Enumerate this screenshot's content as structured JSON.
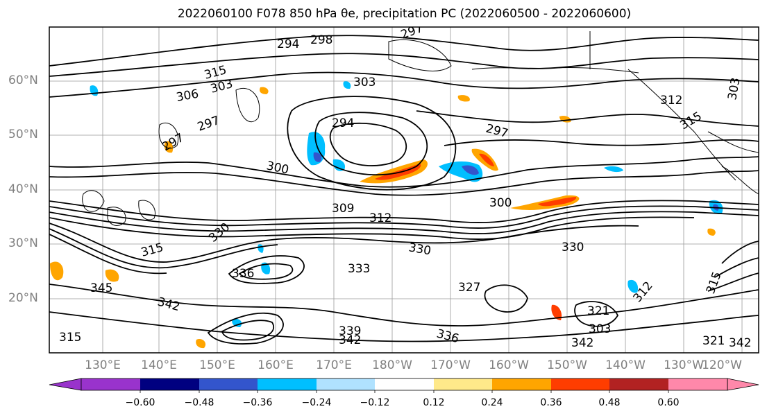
{
  "title": "2022060100 F078 850 hPa θe, precipitation PC (2022060500 - 2022060600)",
  "lat_labels": [
    "60°N",
    "50°N",
    "40°N",
    "30°N",
    "20°N"
  ],
  "lon_labels": [
    "130°E",
    "140°E",
    "150°E",
    "160°E",
    "170°E",
    "180°W",
    "170°W",
    "160°W",
    "150°W",
    "140°W",
    "130°W",
    "120°W"
  ],
  "contour_labels": [
    "294",
    "298",
    "297",
    "315",
    "303",
    "306",
    "303",
    "297",
    "297",
    "294",
    "300",
    "297",
    "303",
    "312",
    "315",
    "309",
    "312",
    "300",
    "315",
    "330",
    "330",
    "333",
    "330",
    "345",
    "342",
    "336",
    "327",
    "321",
    "342",
    "339",
    "342",
    "336",
    "312",
    "315",
    "315",
    "321",
    "342",
    "303"
  ],
  "colorbar": {
    "ticks": [
      "−0.60",
      "−0.48",
      "−0.36",
      "−0.24",
      "−0.12",
      "0.12",
      "0.24",
      "0.36",
      "0.48",
      "0.60"
    ],
    "colors": [
      "#9933cc",
      "#000080",
      "#3355cc",
      "#00bfff",
      "#b0e2ff",
      "#ffffff",
      "#ffe98a",
      "#ffa500",
      "#ff3d00",
      "#b22222",
      "#ff88aa"
    ]
  }
}
